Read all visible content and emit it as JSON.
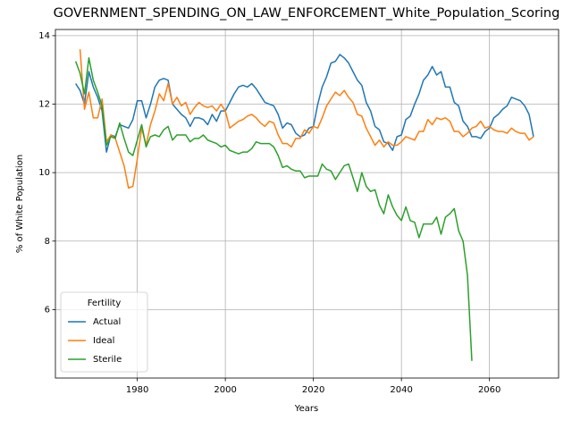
{
  "chart_data": {
    "type": "line",
    "title": "GOVERNMENT_SPENDING_ON_LAW_ENFORCEMENT_White_Population_Scoring",
    "x_label": "Years",
    "y_label": "% of White Population",
    "x": [
      1966,
      1967,
      1968,
      1969,
      1970,
      1971,
      1972,
      1973,
      1974,
      1975,
      1976,
      1977,
      1978,
      1979,
      1980,
      1981,
      1982,
      1983,
      1984,
      1985,
      1986,
      1987,
      1988,
      1989,
      1990,
      1991,
      1992,
      1993,
      1994,
      1995,
      1996,
      1997,
      1998,
      1999,
      2000,
      2001,
      2002,
      2003,
      2004,
      2005,
      2006,
      2007,
      2008,
      2009,
      2010,
      2011,
      2012,
      2013,
      2014,
      2015,
      2016,
      2017,
      2018,
      2019,
      2020,
      2021,
      2022,
      2023,
      2024,
      2025,
      2026,
      2027,
      2028,
      2029,
      2030,
      2031,
      2032,
      2033,
      2034,
      2035,
      2036,
      2037,
      2038,
      2039,
      2040,
      2041,
      2042,
      2043,
      2044,
      2045,
      2046,
      2047,
      2048,
      2049,
      2050,
      2051,
      2052,
      2053,
      2054,
      2055,
      2056,
      2057,
      2058,
      2059,
      2060,
      2061,
      2062,
      2063,
      2064,
      2065,
      2066,
      2067,
      2068,
      2069,
      2070
    ],
    "series": [
      {
        "name": "Actual",
        "color": "#1f77b4",
        "values": [
          12.6,
          12.4,
          12.0,
          12.95,
          12.5,
          12.2,
          11.8,
          10.6,
          11.1,
          11.05,
          11.4,
          11.35,
          11.3,
          11.55,
          12.1,
          12.1,
          11.6,
          12.0,
          12.5,
          12.7,
          12.75,
          12.7,
          12.0,
          11.85,
          11.7,
          11.6,
          11.35,
          11.6,
          11.6,
          11.55,
          11.4,
          11.7,
          11.5,
          11.8,
          11.8,
          12.05,
          12.3,
          12.5,
          12.55,
          12.5,
          12.6,
          12.45,
          12.25,
          12.05,
          12.0,
          11.95,
          11.7,
          11.3,
          11.45,
          11.4,
          11.15,
          11.05,
          11.1,
          11.3,
          11.35,
          12.0,
          12.5,
          12.8,
          13.2,
          13.25,
          13.45,
          13.35,
          13.2,
          12.95,
          12.7,
          12.55,
          12.05,
          11.8,
          11.35,
          11.25,
          10.9,
          10.85,
          10.65,
          11.05,
          11.1,
          11.55,
          11.65,
          12.0,
          12.3,
          12.7,
          12.85,
          13.1,
          12.85,
          12.95,
          12.5,
          12.5,
          12.05,
          11.95,
          11.5,
          11.35,
          11.05,
          11.05,
          11.0,
          11.2,
          11.3,
          11.6,
          11.7,
          11.85,
          11.95,
          12.2,
          12.15,
          12.1,
          11.95,
          11.7,
          11.05
        ]
      },
      {
        "name": "Ideal",
        "color": "#ff7f0e",
        "values": [
          null,
          13.6,
          11.85,
          12.35,
          11.6,
          11.6,
          12.15,
          10.9,
          11.1,
          11.0,
          10.6,
          10.2,
          9.55,
          9.6,
          10.4,
          11.3,
          10.8,
          11.4,
          11.8,
          12.3,
          12.1,
          12.6,
          12.0,
          12.2,
          11.95,
          12.05,
          11.7,
          11.9,
          12.05,
          11.95,
          11.9,
          11.95,
          11.8,
          12.0,
          11.8,
          11.3,
          11.4,
          11.5,
          11.55,
          11.65,
          11.7,
          11.6,
          11.45,
          11.35,
          11.5,
          11.45,
          11.1,
          10.85,
          10.85,
          10.75,
          11.0,
          11.0,
          11.25,
          11.15,
          11.35,
          11.3,
          11.6,
          11.95,
          12.15,
          12.35,
          12.25,
          12.4,
          12.2,
          12.05,
          11.7,
          11.65,
          11.3,
          11.05,
          10.8,
          10.95,
          10.75,
          10.9,
          10.8,
          10.8,
          10.9,
          11.05,
          11.0,
          10.95,
          11.2,
          11.2,
          11.55,
          11.4,
          11.6,
          11.55,
          11.6,
          11.5,
          11.2,
          11.2,
          11.05,
          11.15,
          11.3,
          11.35,
          11.5,
          11.3,
          11.35,
          11.25,
          11.2,
          11.2,
          11.15,
          11.3,
          11.2,
          11.15,
          11.15,
          10.95,
          11.05
        ]
      },
      {
        "name": "Sterile",
        "color": "#2ca02c",
        "values": [
          13.25,
          12.9,
          12.3,
          13.35,
          12.7,
          12.35,
          11.95,
          10.8,
          11.05,
          11.0,
          11.45,
          11.0,
          10.6,
          10.5,
          10.95,
          11.4,
          10.75,
          11.05,
          11.1,
          11.05,
          11.25,
          11.35,
          10.95,
          11.1,
          11.1,
          11.1,
          10.9,
          11.0,
          11.0,
          11.1,
          10.95,
          10.9,
          10.85,
          10.75,
          10.8,
          10.65,
          10.6,
          10.55,
          10.6,
          10.6,
          10.7,
          10.9,
          10.85,
          10.85,
          10.85,
          10.75,
          10.5,
          10.15,
          10.2,
          10.1,
          10.05,
          10.05,
          9.85,
          9.9,
          9.9,
          9.9,
          10.25,
          10.1,
          10.05,
          9.8,
          10.0,
          10.2,
          10.25,
          9.85,
          9.45,
          10.0,
          9.6,
          9.45,
          9.5,
          9.05,
          8.8,
          9.35,
          9.0,
          8.75,
          8.6,
          9.0,
          8.6,
          8.55,
          8.1,
          8.5,
          8.5,
          8.5,
          8.7,
          8.2,
          8.7,
          8.8,
          8.95,
          8.3,
          8.0,
          7.0,
          4.5,
          null,
          null,
          null,
          null,
          null,
          null,
          null,
          null,
          null,
          null,
          null,
          null,
          null,
          null
        ]
      }
    ],
    "xlim": [
      1961.4,
      2075.7
    ],
    "xticks": [
      1980,
      2000,
      2020,
      2040,
      2060
    ],
    "ylim": [
      4.0,
      14.18
    ],
    "yticks": [
      6,
      8,
      10,
      12,
      14
    ],
    "grid": true,
    "legend_title": "Fertility",
    "legend_position": "lower left"
  }
}
